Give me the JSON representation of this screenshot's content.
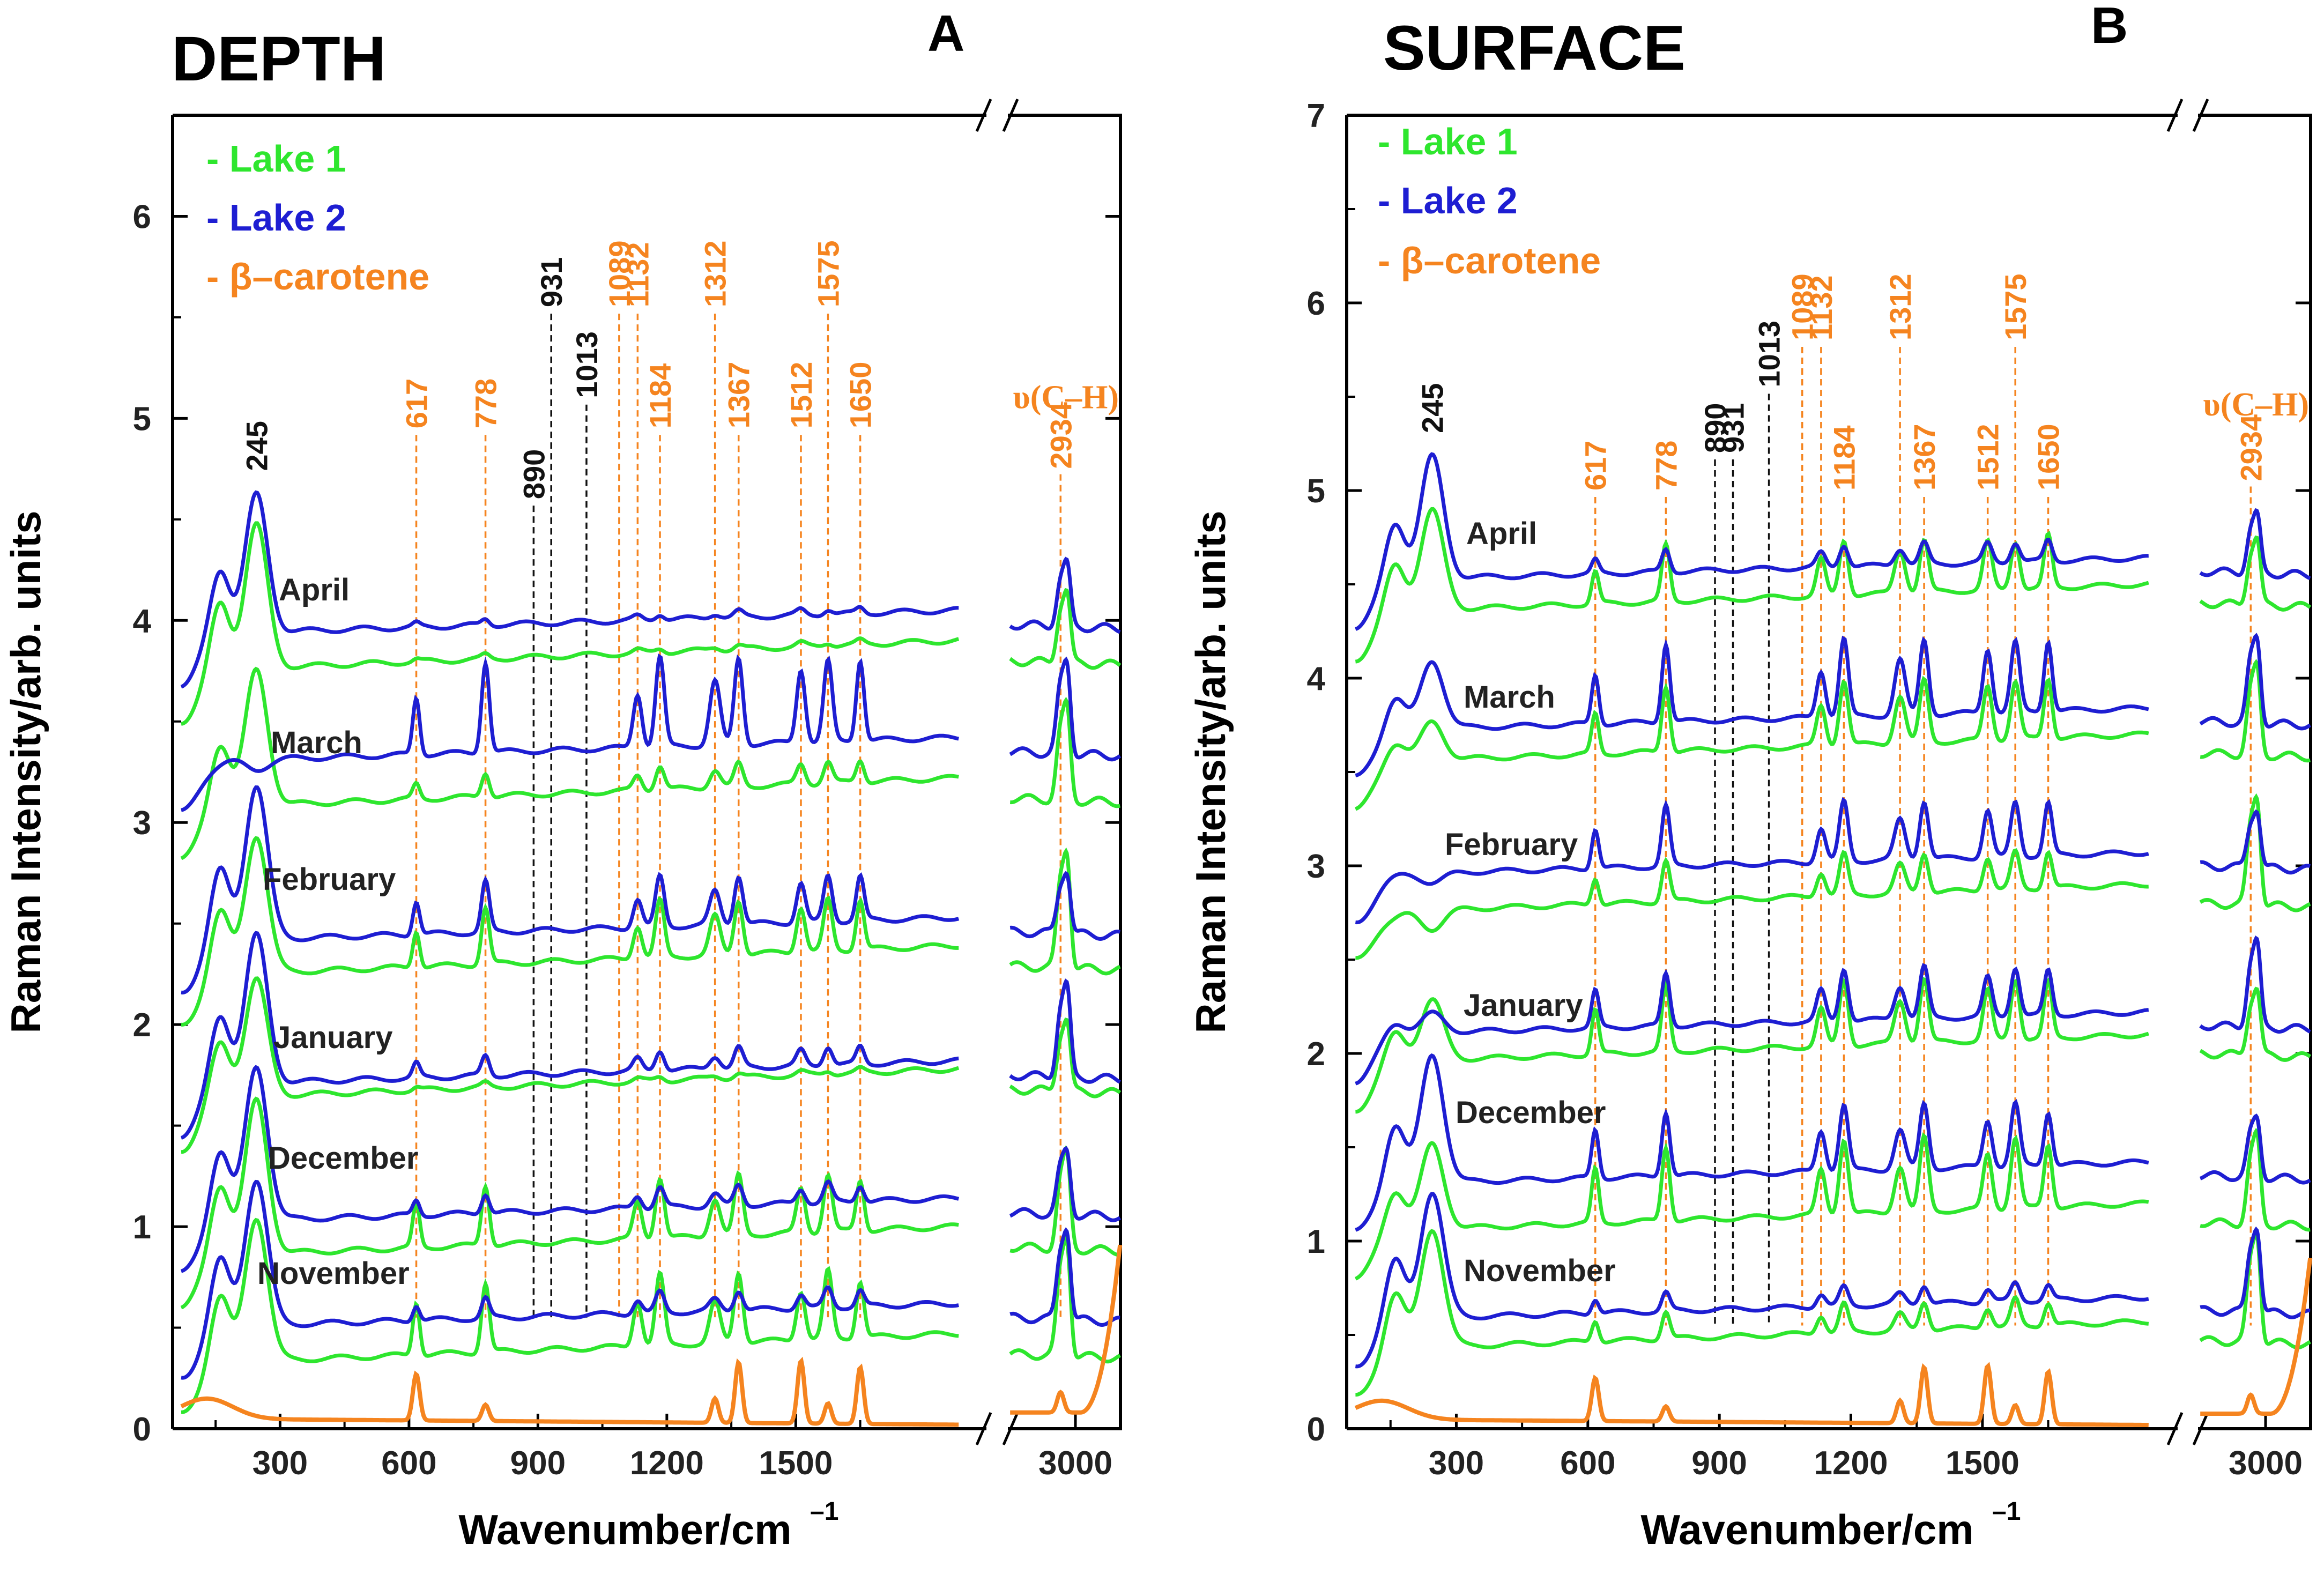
{
  "colors": {
    "lake1": "#2ee62e",
    "lake2": "#1e1ed2",
    "beta": "#f5841f",
    "ref_black": "#111111"
  },
  "chart_data": [
    {
      "type": "line",
      "panel": "A",
      "title": "DEPTH",
      "xlabel": "Wavenumber/cm",
      "xlabel_sup": "–1",
      "ylabel": "Raman Intensity/arb. units",
      "xlim": [
        50,
        1900
      ],
      "xlim_break": [
        2700,
        3200
      ],
      "x_ticks": [
        300,
        600,
        900,
        1200,
        1500
      ],
      "x_ticks_break": [
        3000
      ],
      "ylim": [
        0,
        6.5
      ],
      "y_ticks": [
        0,
        1,
        2,
        3,
        4,
        5,
        6
      ],
      "legend": [
        {
          "label": "- Lake 1",
          "series": "lake1"
        },
        {
          "label": "- Lake 2",
          "series": "lake2"
        },
        {
          "label": "- β–carotene",
          "series": "beta"
        }
      ],
      "peak_labels": [
        {
          "x": 245,
          "label": "245",
          "color": "black",
          "line": false
        },
        {
          "x": 617,
          "label": "617",
          "color": "orange",
          "line": true
        },
        {
          "x": 778,
          "label": "778",
          "color": "orange",
          "line": true
        },
        {
          "x": 890,
          "label": "890",
          "color": "black",
          "line": true
        },
        {
          "x": 931,
          "label": "931",
          "color": "black",
          "line": true
        },
        {
          "x": 1013,
          "label": "1013",
          "color": "black",
          "line": true
        },
        {
          "x": 1089,
          "label": "1089",
          "color": "orange",
          "line": true
        },
        {
          "x": 1132,
          "label": "1132",
          "color": "orange",
          "line": true
        },
        {
          "x": 1184,
          "label": "1184",
          "color": "orange",
          "line": true
        },
        {
          "x": 1312,
          "label": "1312",
          "color": "orange",
          "line": true
        },
        {
          "x": 1367,
          "label": "1367",
          "color": "orange",
          "line": true
        },
        {
          "x": 1512,
          "label": "1512",
          "color": "orange",
          "line": true
        },
        {
          "x": 1575,
          "label": "1575",
          "color": "orange",
          "line": true
        },
        {
          "x": 1650,
          "label": "1650",
          "color": "orange",
          "line": true
        }
      ],
      "ch_annotation": {
        "label": "υ(C–H)",
        "x": 2934,
        "label_2934": "2934"
      },
      "months": [
        "April",
        "March",
        "February",
        "January",
        "December",
        "November"
      ],
      "series": [
        {
          "month": "April",
          "lake2_base": 3.93,
          "lake1_base": 3.75,
          "lake2_245": 4.66,
          "lake1_245": 4.51,
          "lake2_bs": 0.03,
          "lake1_bs": 0.02
        },
        {
          "month": "March",
          "lake2_base": 3.3,
          "lake1_base": 3.07,
          "lake2_245": 3.3,
          "lake1_245": 3.79,
          "lake2_bs": 0.45,
          "lake1_bs": 0.12
        },
        {
          "month": "February",
          "lake2_base": 2.41,
          "lake1_base": 2.24,
          "lake2_245": 3.22,
          "lake1_245": 2.97,
          "lake2_bs": 0.25,
          "lake1_bs": 0.28
        },
        {
          "month": "January",
          "lake2_base": 1.7,
          "lake1_base": 1.63,
          "lake2_245": 2.48,
          "lake1_245": 2.26,
          "lake2_bs": 0.1,
          "lake1_bs": 0.02
        },
        {
          "month": "December",
          "lake2_base": 1.02,
          "lake1_base": 0.85,
          "lake2_245": 1.83,
          "lake1_245": 1.66,
          "lake2_bs": 0.1,
          "lake1_bs": 0.3
        },
        {
          "month": "November",
          "lake2_base": 0.5,
          "lake1_base": 0.32,
          "lake2_245": 1.27,
          "lake1_245": 1.08,
          "lake2_bs": 0.1,
          "lake1_bs": 0.35
        }
      ],
      "beta_carotene": {
        "base": 0.05,
        "peaks": [
          {
            "x": 617,
            "h": 0.23
          },
          {
            "x": 778,
            "h": 0.08
          },
          {
            "x": 1312,
            "h": 0.12
          },
          {
            "x": 1367,
            "h": 0.3
          },
          {
            "x": 1512,
            "h": 0.31
          },
          {
            "x": 1575,
            "h": 0.1
          },
          {
            "x": 1650,
            "h": 0.28
          }
        ]
      }
    },
    {
      "type": "line",
      "panel": "B",
      "title": "SURFACE",
      "xlabel": "Wavenumber/cm",
      "xlabel_sup": "–1",
      "ylabel": "Raman Intensity/arb. units",
      "xlim": [
        50,
        1900
      ],
      "xlim_break": [
        2700,
        3200
      ],
      "x_ticks": [
        300,
        600,
        900,
        1200,
        1500
      ],
      "x_ticks_break": [
        3000
      ],
      "ylim": [
        0,
        7
      ],
      "y_ticks": [
        0,
        1,
        2,
        3,
        4,
        5,
        6,
        7
      ],
      "legend": [
        {
          "label": "- Lake 1",
          "series": "lake1"
        },
        {
          "label": "- Lake 2",
          "series": "lake2"
        },
        {
          "label": "- β–carotene",
          "series": "beta"
        }
      ],
      "peak_labels": [
        {
          "x": 245,
          "label": "245",
          "color": "black",
          "line": false
        },
        {
          "x": 617,
          "label": "617",
          "color": "orange",
          "line": true
        },
        {
          "x": 778,
          "label": "778",
          "color": "orange",
          "line": true
        },
        {
          "x": 890,
          "label": "890",
          "color": "black",
          "line": true
        },
        {
          "x": 931,
          "label": "931",
          "color": "black",
          "line": true
        },
        {
          "x": 1013,
          "label": "1013",
          "color": "black",
          "line": true
        },
        {
          "x": 1089,
          "label": "1089",
          "color": "orange",
          "line": true
        },
        {
          "x": 1132,
          "label": "1132",
          "color": "orange",
          "line": true
        },
        {
          "x": 1184,
          "label": "1184",
          "color": "orange",
          "line": true
        },
        {
          "x": 1312,
          "label": "1312",
          "color": "orange",
          "line": true
        },
        {
          "x": 1367,
          "label": "1367",
          "color": "orange",
          "line": true
        },
        {
          "x": 1512,
          "label": "1512",
          "color": "orange",
          "line": true
        },
        {
          "x": 1575,
          "label": "1575",
          "color": "orange",
          "line": true
        },
        {
          "x": 1650,
          "label": "1650",
          "color": "orange",
          "line": true
        }
      ],
      "ch_annotation": {
        "label": "υ(C–H)",
        "x": 2934,
        "label_2934": "2934"
      },
      "months": [
        "April",
        "March",
        "February",
        "January",
        "December",
        "November"
      ],
      "series": [
        {
          "month": "April",
          "lake2_base": 4.52,
          "lake1_base": 4.35,
          "lake2_245": 5.22,
          "lake1_245": 4.93,
          "lake2_bs": 0.12,
          "lake1_bs": 0.3
        },
        {
          "month": "March",
          "lake2_base": 3.72,
          "lake1_base": 3.55,
          "lake2_245": 4.13,
          "lake1_245": 3.8,
          "lake2_bs": 0.42,
          "lake1_bs": 0.35
        },
        {
          "month": "February",
          "lake2_base": 2.95,
          "lake1_base": 2.75,
          "lake2_245": 2.95,
          "lake1_245": 2.7,
          "lake2_bs": 0.32,
          "lake1_bs": 0.22
        },
        {
          "month": "January",
          "lake2_base": 2.1,
          "lake1_base": 1.95,
          "lake2_245": 2.25,
          "lake1_245": 2.32,
          "lake2_bs": 0.28,
          "lake1_bs": 0.35
        },
        {
          "month": "December",
          "lake2_base": 1.3,
          "lake1_base": 1.05,
          "lake2_245": 2.03,
          "lake1_245": 1.55,
          "lake2_bs": 0.35,
          "lake1_bs": 0.4
        },
        {
          "month": "November",
          "lake2_base": 0.58,
          "lake1_base": 0.42,
          "lake2_245": 1.3,
          "lake1_245": 1.1,
          "lake2_bs": 0.1,
          "lake1_bs": 0.15
        }
      ],
      "beta_carotene": {
        "base": 0.05,
        "peaks": [
          {
            "x": 617,
            "h": 0.23
          },
          {
            "x": 778,
            "h": 0.08
          },
          {
            "x": 1312,
            "h": 0.12
          },
          {
            "x": 1367,
            "h": 0.3
          },
          {
            "x": 1512,
            "h": 0.31
          },
          {
            "x": 1575,
            "h": 0.1
          },
          {
            "x": 1650,
            "h": 0.28
          }
        ]
      }
    }
  ],
  "panel_letters": [
    "A",
    "B"
  ]
}
